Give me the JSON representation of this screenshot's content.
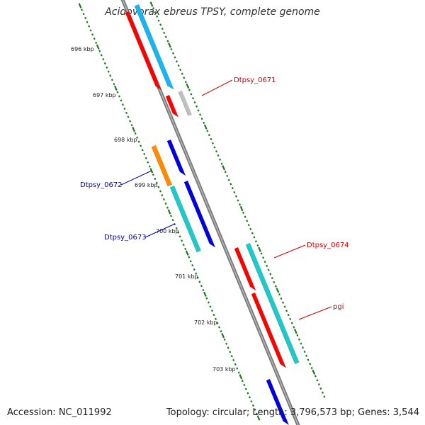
{
  "title": "Acidovorax ebreus TPSY, complete genome",
  "footer": {
    "accession": "Accession: NC_011992",
    "topology": "Topology: circular; Length: 3,796,573 bp; Genes: 3,544"
  },
  "colors": {
    "backbone": "#7a7a7a",
    "tick_dots": "#1f7a1f",
    "red_gene": "#ff0000",
    "cyan_gene": "#20c8c8",
    "skyblue_gene": "#1ab4f0",
    "blue_gene": "#0000e0",
    "orange_gene": "#ff8c00",
    "gray_gene": "#c0c0c0",
    "label_red": "#cc0000",
    "label_blue": "#0000aa"
  },
  "ticks": [
    {
      "label": "696 kbp"
    },
    {
      "label": "697 kbp"
    },
    {
      "label": "698 kbp"
    },
    {
      "label": "699 kbp"
    },
    {
      "label": "700 kbp"
    },
    {
      "label": "701 kbp"
    },
    {
      "label": "702 kbp"
    },
    {
      "label": "703 kbp"
    }
  ],
  "gene_labels": [
    {
      "text": "Dtpsy_0671",
      "color": "label_red"
    },
    {
      "text": "Dtpsy_0672",
      "color": "label_blue"
    },
    {
      "text": "Dtpsy_0673",
      "color": "label_blue"
    },
    {
      "text": "Dtpsy_0674",
      "color": "label_red"
    },
    {
      "text": "pgi",
      "color": "label_red"
    }
  ]
}
